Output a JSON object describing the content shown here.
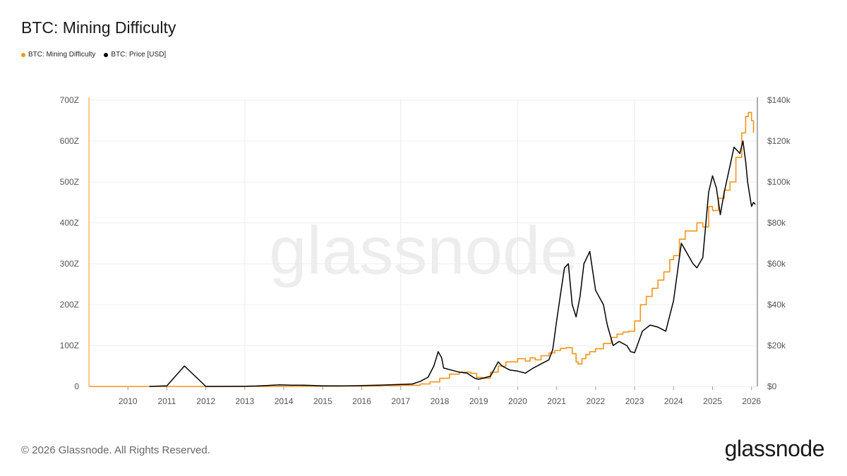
{
  "page": {
    "title": "BTC: Mining Difficulty",
    "watermark": "glassnode",
    "footer": "© 2026 Glassnode. All Rights Reserved.",
    "logo": "glassnode"
  },
  "legend": [
    {
      "label": "BTC: Mining Difficulty",
      "color": "#f7931a"
    },
    {
      "label": "BTC: Price [USD]",
      "color": "#000000"
    }
  ],
  "chart_data": {
    "type": "line",
    "title": "BTC: Mining Difficulty",
    "xlim": [
      2009.0,
      2026.15
    ],
    "x_ticks": [
      "2010",
      "2011",
      "2012",
      "2013",
      "2014",
      "2015",
      "2016",
      "2017",
      "2018",
      "2019",
      "2020",
      "2021",
      "2022",
      "2023",
      "2024",
      "2025",
      "2026"
    ],
    "left_axis": {
      "ylim": [
        0,
        700
      ],
      "unit": "Z",
      "tick_labels": [
        "0",
        "100Z",
        "200Z",
        "300Z",
        "400Z",
        "500Z",
        "600Z",
        "700Z"
      ]
    },
    "right_axis": {
      "ylim": [
        0,
        140000
      ],
      "tick_labels": [
        "$0",
        "$20k",
        "$40k",
        "$60k",
        "$80k",
        "$100k",
        "$120k",
        "$140k"
      ]
    },
    "grid": true,
    "legend_position": "top-left",
    "series": [
      {
        "name": "BTC: Mining Difficulty",
        "axis": "left",
        "color": "#f7931a",
        "step": true,
        "x": [
          2009.0,
          2010.5,
          2011.5,
          2012.5,
          2013.5,
          2014.5,
          2015.5,
          2016.5,
          2017.0,
          2017.5,
          2017.75,
          2018.0,
          2018.25,
          2018.5,
          2018.8,
          2018.95,
          2019.1,
          2019.3,
          2019.5,
          2019.7,
          2019.85,
          2020.0,
          2020.2,
          2020.32,
          2020.45,
          2020.6,
          2020.8,
          2020.95,
          2021.1,
          2021.25,
          2021.4,
          2021.5,
          2021.55,
          2021.65,
          2021.75,
          2021.85,
          2022.0,
          2022.2,
          2022.4,
          2022.55,
          2022.7,
          2022.85,
          2023.0,
          2023.15,
          2023.3,
          2023.45,
          2023.6,
          2023.75,
          2023.9,
          2024.0,
          2024.15,
          2024.3,
          2024.45,
          2024.6,
          2024.75,
          2024.9,
          2025.0,
          2025.15,
          2025.3,
          2025.45,
          2025.6,
          2025.75,
          2025.85,
          2025.92,
          2026.0,
          2026.05
        ],
        "values": [
          0,
          0,
          0,
          0,
          0,
          0.5,
          1,
          2,
          3,
          6,
          11,
          20,
          30,
          35,
          32,
          22,
          20,
          35,
          50,
          60,
          60,
          68,
          62,
          70,
          65,
          75,
          82,
          88,
          93,
          95,
          80,
          60,
          55,
          68,
          78,
          85,
          92,
          105,
          120,
          128,
          133,
          135,
          160,
          200,
          220,
          240,
          260,
          280,
          310,
          320,
          360,
          380,
          380,
          400,
          390,
          440,
          430,
          460,
          480,
          500,
          560,
          620,
          660,
          670,
          650,
          620
        ]
      },
      {
        "name": "BTC: Price [USD]",
        "axis": "right",
        "color": "#000000",
        "step": false,
        "x": [
          2010.55,
          2011.0,
          2011.45,
          2012.0,
          2013.0,
          2013.3,
          2013.9,
          2014.2,
          2014.5,
          2015.0,
          2015.5,
          2016.0,
          2016.5,
          2017.0,
          2017.3,
          2017.5,
          2017.7,
          2017.85,
          2017.96,
          2018.05,
          2018.1,
          2018.3,
          2018.5,
          2018.7,
          2018.9,
          2019.0,
          2019.3,
          2019.5,
          2019.6,
          2019.8,
          2020.0,
          2020.2,
          2020.4,
          2020.6,
          2020.8,
          2020.9,
          2021.0,
          2021.1,
          2021.2,
          2021.3,
          2021.4,
          2021.5,
          2021.6,
          2021.7,
          2021.85,
          2022.0,
          2022.2,
          2022.3,
          2022.45,
          2022.6,
          2022.8,
          2022.9,
          2023.0,
          2023.2,
          2023.4,
          2023.6,
          2023.8,
          2024.0,
          2024.2,
          2024.35,
          2024.5,
          2024.6,
          2024.75,
          2024.9,
          2025.0,
          2025.1,
          2025.2,
          2025.3,
          2025.45,
          2025.55,
          2025.7,
          2025.78,
          2025.85,
          2025.9,
          2026.0,
          2026.05,
          2026.1
        ],
        "values": [
          0,
          300,
          10000,
          5,
          100,
          200,
          800,
          600,
          600,
          300,
          250,
          400,
          650,
          1000,
          1200,
          2500,
          4500,
          10000,
          17000,
          14000,
          9000,
          8000,
          7000,
          6500,
          4000,
          3500,
          5000,
          12000,
          10000,
          8000,
          7500,
          6500,
          9000,
          11000,
          13000,
          18000,
          32000,
          45000,
          58000,
          60000,
          40000,
          34000,
          44000,
          60000,
          66000,
          47000,
          40000,
          30000,
          20000,
          22000,
          20000,
          17000,
          16500,
          27000,
          30000,
          29000,
          27000,
          42000,
          70000,
          65000,
          60000,
          58000,
          63000,
          95000,
          103000,
          97000,
          84000,
          95000,
          108000,
          117000,
          114000,
          120000,
          110000,
          100000,
          88000,
          90000,
          89000
        ]
      }
    ]
  }
}
